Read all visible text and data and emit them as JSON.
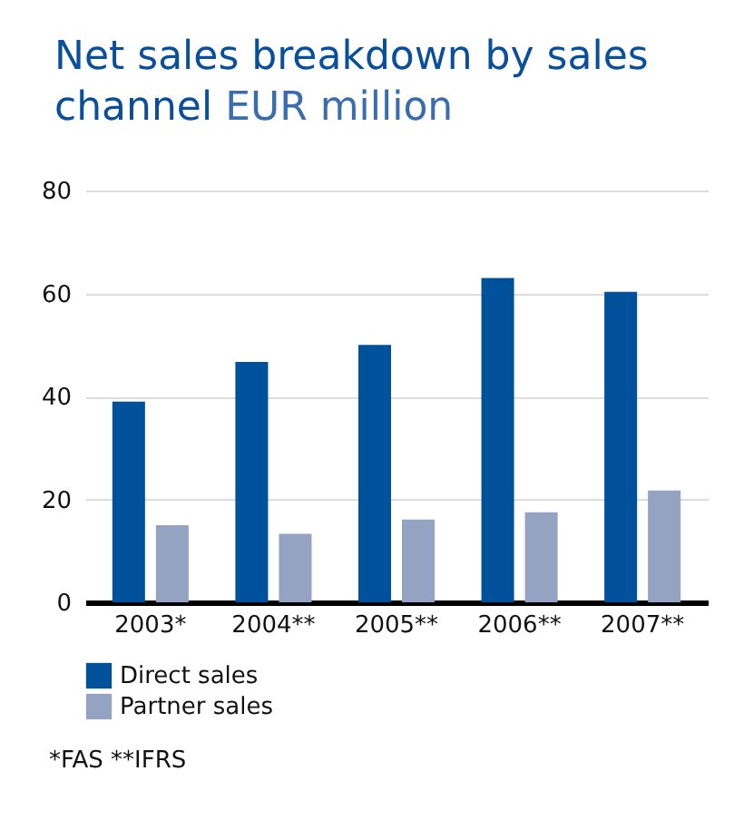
{
  "chart_data": {
    "type": "bar",
    "title": "Net sales breakdown by sales channel",
    "subtitle": "EUR million",
    "categories": [
      "2003*",
      "2004**",
      "2005**",
      "2006**",
      "2007**"
    ],
    "series": [
      {
        "name": "Direct sales",
        "color": "#00519b",
        "values": [
          39,
          46.7,
          50,
          63,
          60.3
        ]
      },
      {
        "name": "Partner sales",
        "color": "#94a3c1",
        "values": [
          15,
          13.3,
          16.1,
          17.5,
          21.7
        ]
      }
    ],
    "ylim": [
      0,
      80
    ],
    "yticks": [
      0,
      20,
      40,
      60,
      80
    ],
    "grid": "y",
    "legend": "bottom left",
    "annotations": [
      "*FAS **IFRS"
    ]
  }
}
